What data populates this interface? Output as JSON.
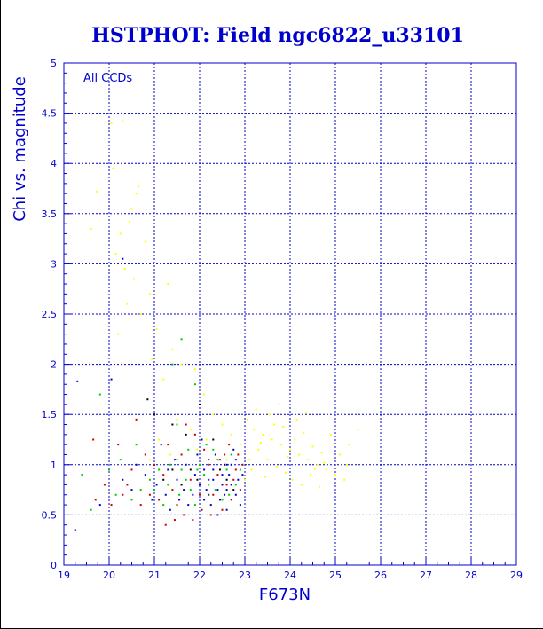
{
  "colors": {
    "accent": "#0000cc",
    "grid": "#0000cc",
    "background": "#ffffff"
  },
  "chart_data": {
    "type": "scatter",
    "title": "HSTPHOT: Field ngc6822_u33101",
    "xlabel": "F673N",
    "ylabel": "Chi vs. magnitude",
    "annotation": "All CCDs",
    "xlim": [
      19,
      29
    ],
    "ylim": [
      0,
      5
    ],
    "xticks": [
      "19",
      "20",
      "21",
      "22",
      "23",
      "24",
      "25",
      "26",
      "27",
      "28",
      "29"
    ],
    "yticks": [
      "0",
      "0.5",
      "1",
      "1.5",
      "2",
      "2.5",
      "3",
      "3.5",
      "4",
      "4.5",
      "5"
    ],
    "grid": true,
    "legend": "none",
    "series": [
      {
        "color": "#ffff00",
        "points": [
          [
            20.05,
            4.4
          ],
          [
            20.3,
            4.42
          ],
          [
            20.08,
            3.95
          ],
          [
            19.72,
            3.72
          ],
          [
            20.65,
            3.77
          ],
          [
            20.6,
            3.7
          ],
          [
            20.5,
            3.55
          ],
          [
            20.45,
            3.42
          ],
          [
            19.6,
            3.35
          ],
          [
            20.25,
            3.3
          ],
          [
            20.8,
            3.22
          ],
          [
            20.15,
            3.1
          ],
          [
            20.35,
            2.95
          ],
          [
            20.55,
            2.85
          ],
          [
            20.9,
            2.7
          ],
          [
            21.3,
            2.8
          ],
          [
            20.4,
            2.6
          ],
          [
            20.7,
            2.5
          ],
          [
            21.05,
            2.35
          ],
          [
            20.2,
            2.3
          ],
          [
            21.4,
            2.15
          ],
          [
            20.95,
            2.05
          ],
          [
            21.6,
            2.0
          ],
          [
            21.9,
            1.95
          ],
          [
            21.2,
            1.85
          ],
          [
            22.1,
            1.7
          ],
          [
            23.05,
            1.45
          ],
          [
            23.2,
            1.35
          ],
          [
            23.4,
            1.3
          ],
          [
            23.6,
            1.25
          ],
          [
            23.8,
            1.2
          ],
          [
            24.0,
            1.15
          ],
          [
            24.2,
            1.1
          ],
          [
            24.4,
            1.05
          ],
          [
            24.6,
            1.0
          ],
          [
            24.8,
            0.95
          ],
          [
            25.0,
            0.9
          ],
          [
            25.2,
            0.85
          ],
          [
            23.3,
            1.15
          ],
          [
            23.5,
            1.05
          ],
          [
            23.7,
            0.98
          ],
          [
            23.9,
            0.92
          ],
          [
            24.1,
            1.25
          ],
          [
            24.3,
            1.32
          ],
          [
            24.5,
            1.18
          ],
          [
            24.7,
            1.12
          ],
          [
            24.9,
            1.3
          ],
          [
            25.1,
            1.1
          ],
          [
            25.3,
            1.2
          ],
          [
            25.5,
            1.35
          ],
          [
            23.15,
            0.95
          ],
          [
            23.45,
            0.88
          ],
          [
            23.65,
            1.4
          ],
          [
            23.85,
            1.38
          ],
          [
            24.05,
            0.85
          ],
          [
            24.25,
            0.8
          ],
          [
            24.45,
            0.9
          ],
          [
            24.65,
            0.78
          ],
          [
            23.25,
            1.55
          ],
          [
            23.55,
            1.5
          ],
          [
            23.75,
            1.6
          ],
          [
            24.15,
            1.45
          ],
          [
            24.35,
            1.52
          ],
          [
            22.9,
            1.2
          ],
          [
            22.7,
            1.3
          ],
          [
            22.5,
            1.4
          ],
          [
            22.3,
            1.5
          ],
          [
            22.15,
            1.25
          ],
          [
            21.8,
            1.35
          ],
          [
            21.5,
            1.45
          ],
          [
            21.35,
            1.1
          ],
          [
            21.1,
            1.25
          ],
          [
            20.9,
            1.05
          ],
          [
            21.95,
            1.15
          ],
          [
            22.6,
            1.05
          ],
          [
            22.8,
            0.95
          ],
          [
            23.0,
            0.85
          ],
          [
            23.1,
            1.05
          ],
          [
            23.35,
            1.22
          ],
          [
            23.95,
            1.08
          ],
          [
            24.55,
            0.96
          ],
          [
            24.75,
            1.02
          ],
          [
            25.25,
            1.0
          ]
        ]
      },
      {
        "color": "#0000cc",
        "points": [
          [
            19.3,
            1.83
          ],
          [
            20.05,
            1.85
          ],
          [
            20.3,
            3.05
          ],
          [
            19.25,
            0.35
          ],
          [
            19.8,
            0.6
          ],
          [
            20.5,
            0.75
          ],
          [
            20.8,
            0.9
          ],
          [
            21.05,
            0.8
          ],
          [
            21.3,
            0.95
          ],
          [
            21.5,
            0.85
          ],
          [
            21.7,
            1.0
          ],
          [
            21.9,
            0.9
          ],
          [
            22.0,
            0.8
          ],
          [
            22.1,
            0.95
          ],
          [
            22.2,
            1.05
          ],
          [
            22.3,
            0.85
          ],
          [
            22.4,
            0.75
          ],
          [
            22.5,
            0.9
          ],
          [
            22.6,
            1.0
          ],
          [
            22.7,
            0.8
          ],
          [
            22.8,
            0.7
          ],
          [
            22.35,
            1.1
          ],
          [
            22.45,
            0.65
          ],
          [
            22.55,
            0.7
          ],
          [
            22.65,
            0.9
          ],
          [
            22.25,
            0.6
          ],
          [
            22.15,
            0.75
          ],
          [
            21.95,
            1.1
          ],
          [
            21.85,
            0.7
          ],
          [
            21.65,
            0.75
          ],
          [
            21.45,
            1.05
          ],
          [
            21.25,
            0.7
          ],
          [
            21.15,
            1.2
          ],
          [
            22.05,
            1.25
          ],
          [
            22.75,
            1.15
          ],
          [
            22.85,
            0.85
          ],
          [
            22.95,
            0.9
          ],
          [
            22.9,
            0.6
          ],
          [
            22.6,
            0.55
          ],
          [
            22.4,
            0.5
          ],
          [
            21.75,
            0.6
          ],
          [
            21.55,
            0.65
          ],
          [
            21.35,
            0.55
          ],
          [
            20.95,
            0.65
          ],
          [
            20.6,
            1.0
          ],
          [
            20.3,
            0.85
          ],
          [
            22.5,
            0.8
          ],
          [
            22.3,
            0.95
          ],
          [
            22.2,
            0.85
          ],
          [
            22.1,
            0.65
          ],
          [
            22.7,
            1.0
          ],
          [
            22.8,
            1.05
          ],
          [
            22.6,
            0.75
          ]
        ]
      },
      {
        "color": "#cc0000",
        "points": [
          [
            19.65,
            1.25
          ],
          [
            20.2,
            1.2
          ],
          [
            20.6,
            1.45
          ],
          [
            20.05,
            0.6
          ],
          [
            20.4,
            0.8
          ],
          [
            20.7,
            0.6
          ],
          [
            20.9,
            0.7
          ],
          [
            21.0,
            1.0
          ],
          [
            21.2,
            0.9
          ],
          [
            21.4,
            0.75
          ],
          [
            21.6,
            1.1
          ],
          [
            21.8,
            0.85
          ],
          [
            22.0,
            0.7
          ],
          [
            22.2,
            1.0
          ],
          [
            22.4,
            0.9
          ],
          [
            22.6,
            0.8
          ],
          [
            22.8,
            0.95
          ],
          [
            22.9,
            0.75
          ],
          [
            22.7,
            0.65
          ],
          [
            22.5,
            0.55
          ],
          [
            22.3,
            0.7
          ],
          [
            22.1,
            1.15
          ],
          [
            21.9,
            1.3
          ],
          [
            21.7,
            1.4
          ],
          [
            21.5,
            0.6
          ],
          [
            21.3,
            1.2
          ],
          [
            21.1,
            0.65
          ],
          [
            20.8,
            1.1
          ],
          [
            20.5,
            0.95
          ],
          [
            20.3,
            0.7
          ],
          [
            19.9,
            0.8
          ],
          [
            19.7,
            0.65
          ],
          [
            22.85,
            1.1
          ],
          [
            22.65,
            1.2
          ],
          [
            22.45,
            1.05
          ],
          [
            22.25,
            0.5
          ],
          [
            22.05,
            0.55
          ],
          [
            21.85,
            0.45
          ],
          [
            21.65,
            0.5
          ],
          [
            21.45,
            0.45
          ],
          [
            21.25,
            0.4
          ],
          [
            22.95,
            1.0
          ],
          [
            22.75,
            0.85
          ],
          [
            22.55,
            1.1
          ]
        ]
      },
      {
        "color": "#00cc00",
        "points": [
          [
            19.8,
            1.7
          ],
          [
            20.15,
            0.7
          ],
          [
            20.6,
            1.2
          ],
          [
            21.4,
            2.0
          ],
          [
            21.5,
            1.4
          ],
          [
            21.9,
            1.8
          ],
          [
            21.6,
            2.25
          ],
          [
            21.0,
            0.75
          ],
          [
            21.2,
            0.6
          ],
          [
            21.3,
            0.8
          ],
          [
            21.6,
            0.95
          ],
          [
            21.8,
            0.75
          ],
          [
            22.0,
            1.0
          ],
          [
            22.2,
            0.8
          ],
          [
            22.4,
            1.05
          ],
          [
            22.6,
            0.95
          ],
          [
            22.8,
            0.8
          ],
          [
            22.7,
            1.1
          ],
          [
            22.5,
            0.65
          ],
          [
            22.3,
            1.15
          ],
          [
            22.1,
            0.9
          ],
          [
            21.9,
            0.6
          ],
          [
            21.7,
            0.85
          ],
          [
            21.5,
            1.05
          ],
          [
            21.1,
            0.95
          ],
          [
            20.9,
            0.85
          ],
          [
            20.7,
            0.75
          ],
          [
            19.4,
            0.9
          ],
          [
            19.6,
            0.55
          ],
          [
            20.0,
            0.95
          ],
          [
            22.9,
            0.95
          ],
          [
            22.65,
            0.7
          ],
          [
            22.35,
            0.75
          ],
          [
            22.15,
            1.2
          ],
          [
            21.95,
            0.95
          ],
          [
            21.75,
            1.15
          ],
          [
            21.55,
            0.7
          ],
          [
            21.35,
            1.0
          ],
          [
            20.5,
            0.65
          ],
          [
            20.25,
            1.05
          ]
        ]
      },
      {
        "color": "#000000",
        "points": [
          [
            20.85,
            1.65
          ],
          [
            21.0,
            1.5
          ],
          [
            21.4,
            1.4
          ],
          [
            22.0,
            1.6
          ],
          [
            21.7,
            1.3
          ],
          [
            22.3,
            1.25
          ],
          [
            22.6,
            0.85
          ],
          [
            22.45,
            0.95
          ],
          [
            22.2,
            0.7
          ],
          [
            21.95,
            0.85
          ],
          [
            22.75,
            0.75
          ],
          [
            22.55,
            1.0
          ],
          [
            21.8,
            0.95
          ],
          [
            21.6,
            0.8
          ],
          [
            21.4,
            0.95
          ],
          [
            21.2,
            0.85
          ]
        ]
      }
    ]
  }
}
